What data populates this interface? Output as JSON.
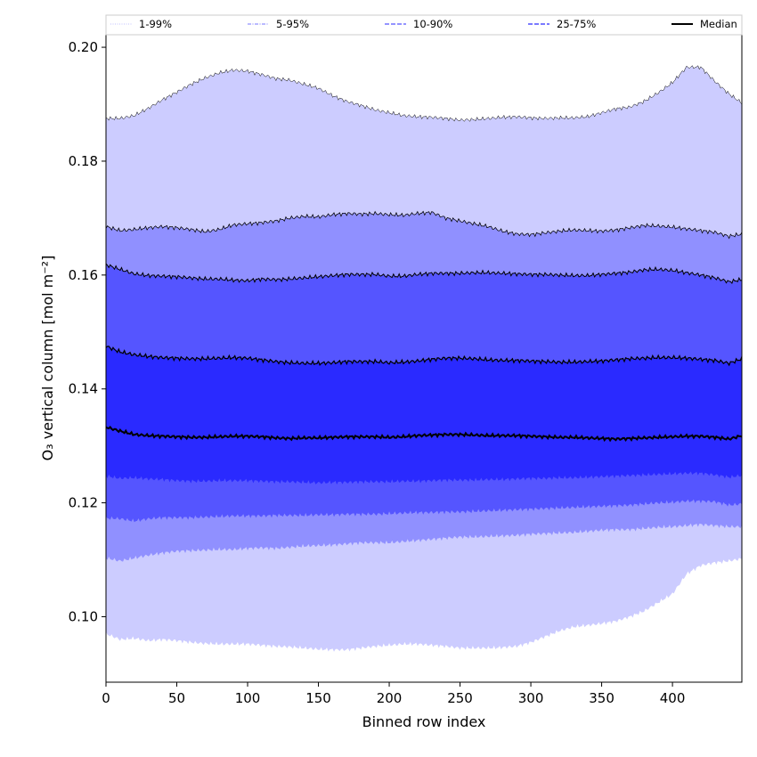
{
  "chart_data": {
    "type": "area",
    "xlabel": "Binned row index",
    "ylabel": "O₃ vertical column [mol m⁻²]",
    "xlim": [
      0,
      449
    ],
    "ylim": [
      0.0885,
      0.2022
    ],
    "xticks": [
      0,
      50,
      100,
      150,
      200,
      250,
      300,
      350,
      400
    ],
    "yticks": [
      0.1,
      0.12,
      0.14,
      0.16,
      0.18,
      0.2
    ],
    "legend_position": "top, horizontal above plot",
    "grid": false,
    "x": [
      0,
      10,
      20,
      30,
      40,
      50,
      60,
      70,
      80,
      90,
      100,
      110,
      120,
      130,
      140,
      150,
      160,
      170,
      180,
      190,
      200,
      210,
      220,
      230,
      240,
      250,
      260,
      270,
      280,
      290,
      300,
      310,
      320,
      330,
      340,
      350,
      360,
      370,
      380,
      390,
      400,
      410,
      420,
      430,
      440,
      449
    ],
    "series": [
      {
        "name": "1-99%",
        "style": "dotted",
        "color": "#ccccff",
        "lower": [
          0.097,
          0.096,
          0.0962,
          0.0958,
          0.096,
          0.0958,
          0.0955,
          0.0953,
          0.0952,
          0.0952,
          0.0952,
          0.095,
          0.0948,
          0.0947,
          0.0945,
          0.0943,
          0.0942,
          0.0942,
          0.0945,
          0.0948,
          0.095,
          0.0952,
          0.0952,
          0.095,
          0.0948,
          0.0945,
          0.0945,
          0.0945,
          0.0946,
          0.0948,
          0.0955,
          0.0965,
          0.0975,
          0.0982,
          0.0985,
          0.0988,
          0.0992,
          0.1,
          0.101,
          0.1025,
          0.104,
          0.1075,
          0.109,
          0.1095,
          0.1098,
          0.1102
        ],
        "upper": [
          0.1875,
          0.1875,
          0.188,
          0.1893,
          0.1908,
          0.1921,
          0.1935,
          0.1946,
          0.1955,
          0.196,
          0.1958,
          0.1952,
          0.1945,
          0.1942,
          0.1935,
          0.1928,
          0.1915,
          0.1905,
          0.1898,
          0.189,
          0.1885,
          0.188,
          0.1878,
          0.1877,
          0.1875,
          0.1872,
          0.1873,
          0.1875,
          0.1877,
          0.1878,
          0.1876,
          0.1875,
          0.1876,
          0.1876,
          0.1878,
          0.1885,
          0.1892,
          0.1895,
          0.1905,
          0.192,
          0.1938,
          0.1965,
          0.1965,
          0.194,
          0.1918,
          0.1902
        ]
      },
      {
        "name": "5-95%",
        "style": "dashdot",
        "color": "#9090ff",
        "lower": [
          0.1103,
          0.1098,
          0.1103,
          0.1108,
          0.1112,
          0.1115,
          0.1116,
          0.1117,
          0.1118,
          0.1118,
          0.112,
          0.1121,
          0.112,
          0.1122,
          0.1124,
          0.1125,
          0.1126,
          0.1128,
          0.113,
          0.113,
          0.113,
          0.1132,
          0.1134,
          0.1136,
          0.1138,
          0.114,
          0.114,
          0.1141,
          0.1142,
          0.1143,
          0.1145,
          0.1146,
          0.1147,
          0.1148,
          0.115,
          0.1152,
          0.1153,
          0.1153,
          0.1155,
          0.1157,
          0.1158,
          0.116,
          0.1162,
          0.116,
          0.1158,
          0.1158
        ],
        "upper": [
          0.1685,
          0.1678,
          0.168,
          0.1683,
          0.1685,
          0.1683,
          0.168,
          0.1676,
          0.168,
          0.1688,
          0.169,
          0.1692,
          0.1695,
          0.17,
          0.1703,
          0.1702,
          0.1706,
          0.1708,
          0.1707,
          0.1708,
          0.1706,
          0.1705,
          0.1708,
          0.171,
          0.17,
          0.1695,
          0.169,
          0.1685,
          0.1677,
          0.1672,
          0.1671,
          0.1674,
          0.1677,
          0.1679,
          0.1678,
          0.1677,
          0.1679,
          0.1683,
          0.1687,
          0.1686,
          0.1684,
          0.1681,
          0.1678,
          0.1675,
          0.1668,
          0.1672
        ]
      },
      {
        "name": "10-90%",
        "style": "dashed",
        "color": "#5555ff",
        "lower": [
          0.1173,
          0.1172,
          0.1168,
          0.1172,
          0.1174,
          0.1174,
          0.1174,
          0.1175,
          0.1176,
          0.1177,
          0.1177,
          0.1177,
          0.1178,
          0.1178,
          0.1178,
          0.1179,
          0.1179,
          0.118,
          0.118,
          0.118,
          0.1181,
          0.1182,
          0.1183,
          0.1183,
          0.1184,
          0.1184,
          0.1185,
          0.1186,
          0.1187,
          0.1188,
          0.1189,
          0.119,
          0.1191,
          0.1192,
          0.1193,
          0.1194,
          0.1195,
          0.1196,
          0.1198,
          0.12,
          0.1201,
          0.1203,
          0.1203,
          0.1202,
          0.1196,
          0.1198
        ],
        "upper": [
          0.1618,
          0.161,
          0.1602,
          0.1599,
          0.1598,
          0.1597,
          0.1595,
          0.1593,
          0.1593,
          0.1591,
          0.159,
          0.1593,
          0.1592,
          0.1593,
          0.1595,
          0.1597,
          0.1599,
          0.1601,
          0.1601,
          0.1601,
          0.1598,
          0.1598,
          0.1601,
          0.1603,
          0.1603,
          0.1603,
          0.1604,
          0.1604,
          0.1603,
          0.1602,
          0.1601,
          0.1601,
          0.16,
          0.1599,
          0.1599,
          0.1601,
          0.1603,
          0.1605,
          0.1609,
          0.161,
          0.1608,
          0.1604,
          0.16,
          0.1595,
          0.1588,
          0.1592
        ]
      },
      {
        "name": "25-75%",
        "style": "dashed",
        "color": "#2a2aff",
        "lower": [
          0.1247,
          0.1243,
          0.1244,
          0.1242,
          0.1241,
          0.1239,
          0.1238,
          0.1238,
          0.1239,
          0.1239,
          0.1239,
          0.1238,
          0.1237,
          0.1237,
          0.1236,
          0.1235,
          0.1236,
          0.1236,
          0.1237,
          0.1237,
          0.1237,
          0.1238,
          0.1238,
          0.1239,
          0.124,
          0.124,
          0.124,
          0.1241,
          0.1241,
          0.1242,
          0.1243,
          0.1243,
          0.1244,
          0.1244,
          0.1245,
          0.1246,
          0.1247,
          0.1248,
          0.1249,
          0.125,
          0.1251,
          0.1252,
          0.1252,
          0.1249,
          0.1245,
          0.1248
        ],
        "upper": [
          0.1475,
          0.1465,
          0.146,
          0.1457,
          0.1455,
          0.1454,
          0.1453,
          0.1453,
          0.1454,
          0.1455,
          0.1454,
          0.1451,
          0.1448,
          0.1446,
          0.1445,
          0.1445,
          0.1446,
          0.1448,
          0.1448,
          0.1448,
          0.1446,
          0.1447,
          0.1449,
          0.1452,
          0.1454,
          0.1454,
          0.1453,
          0.1451,
          0.145,
          0.145,
          0.1449,
          0.1448,
          0.1447,
          0.1447,
          0.1448,
          0.1449,
          0.1451,
          0.1453,
          0.1454,
          0.1455,
          0.1455,
          0.1454,
          0.1452,
          0.145,
          0.1445,
          0.1453
        ]
      },
      {
        "name": "Median",
        "style": "solid",
        "color": "#000000",
        "values": [
          0.1333,
          0.1326,
          0.132,
          0.1318,
          0.1317,
          0.1316,
          0.1315,
          0.1315,
          0.1316,
          0.1317,
          0.1317,
          0.1316,
          0.1314,
          0.1313,
          0.1314,
          0.1314,
          0.1315,
          0.1316,
          0.1316,
          0.1316,
          0.1315,
          0.1316,
          0.1318,
          0.1319,
          0.132,
          0.132,
          0.1319,
          0.1318,
          0.1318,
          0.1318,
          0.1317,
          0.1316,
          0.1315,
          0.1315,
          0.1314,
          0.1313,
          0.1312,
          0.1313,
          0.1314,
          0.1315,
          0.1316,
          0.1317,
          0.1317,
          0.1315,
          0.1312,
          0.1318
        ]
      }
    ]
  }
}
